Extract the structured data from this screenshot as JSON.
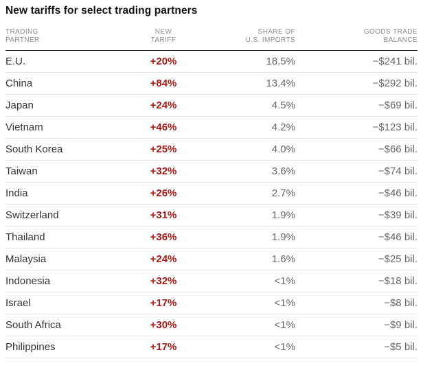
{
  "colors": {
    "tariff_red": "#a41a17",
    "value_gray": "#676767",
    "header_gray": "#8a8a8a",
    "name_dark": "#333333",
    "title_dark": "#121212",
    "rule_light": "#e2e2e2",
    "rule_dark": "#141414"
  },
  "chart_data": {
    "type": "table",
    "title": "New tariffs for select trading partners",
    "columns": [
      {
        "id": "partner",
        "label": "TRADING\nPARTNER",
        "align": "left"
      },
      {
        "id": "tariff",
        "label": "NEW\nTARIFF",
        "align": "center"
      },
      {
        "id": "share",
        "label": "SHARE OF\nU.S. IMPORTS",
        "align": "right"
      },
      {
        "id": "balance",
        "label": "GOODS TRADE\nBALANCE",
        "align": "right"
      }
    ],
    "rows": [
      {
        "partner": "E.U.",
        "tariff": "+20%",
        "share": "18.5%",
        "balance": "−$241 bil."
      },
      {
        "partner": "China",
        "tariff": "+84%",
        "share": "13.4%",
        "balance": "−$292 bil."
      },
      {
        "partner": "Japan",
        "tariff": "+24%",
        "share": "4.5%",
        "balance": "−$69 bil."
      },
      {
        "partner": "Vietnam",
        "tariff": "+46%",
        "share": "4.2%",
        "balance": "−$123 bil."
      },
      {
        "partner": "South Korea",
        "tariff": "+25%",
        "share": "4.0%",
        "balance": "−$66 bil."
      },
      {
        "partner": "Taiwan",
        "tariff": "+32%",
        "share": "3.6%",
        "balance": "−$74 bil."
      },
      {
        "partner": "India",
        "tariff": "+26%",
        "share": "2.7%",
        "balance": "−$46 bil."
      },
      {
        "partner": "Switzerland",
        "tariff": "+31%",
        "share": "1.9%",
        "balance": "−$39 bil."
      },
      {
        "partner": "Thailand",
        "tariff": "+36%",
        "share": "1.9%",
        "balance": "−$46 bil."
      },
      {
        "partner": "Malaysia",
        "tariff": "+24%",
        "share": "1.6%",
        "balance": "−$25 bil."
      },
      {
        "partner": "Indonesia",
        "tariff": "+32%",
        "share": "<1%",
        "balance": "−$18 bil."
      },
      {
        "partner": "Israel",
        "tariff": "+17%",
        "share": "<1%",
        "balance": "−$8 bil."
      },
      {
        "partner": "South Africa",
        "tariff": "+30%",
        "share": "<1%",
        "balance": "−$9 bil."
      },
      {
        "partner": "Philippines",
        "tariff": "+17%",
        "share": "<1%",
        "balance": "−$5 bil."
      }
    ]
  }
}
